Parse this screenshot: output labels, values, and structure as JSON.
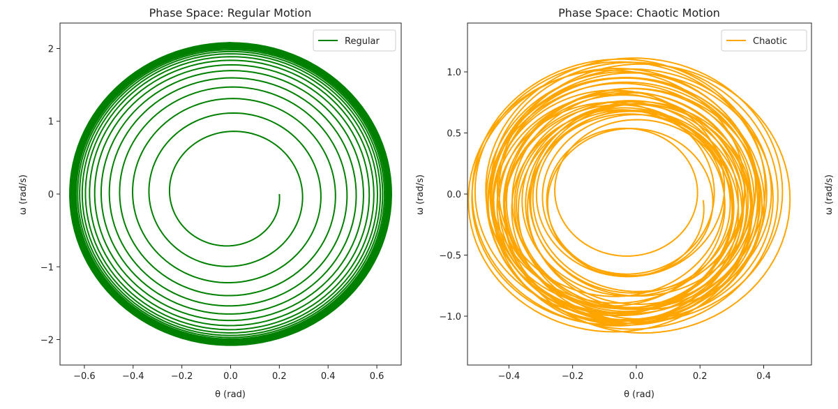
{
  "chart_data": [
    {
      "type": "line",
      "kind": "spiral",
      "title": "Phase Space: Regular Motion",
      "xlabel": "θ (rad)",
      "ylabel": "ω (rad/s)",
      "xlim": [
        -0.7,
        0.7
      ],
      "ylim": [
        -2.35,
        2.35
      ],
      "xticks": [
        -0.6,
        -0.4,
        -0.2,
        0.0,
        0.2,
        0.4,
        0.6
      ],
      "xtick_labels": [
        "−0.6",
        "−0.4",
        "−0.2",
        "0.0",
        "0.2",
        "0.4",
        "0.6"
      ],
      "yticks": [
        -2,
        -1,
        0,
        1,
        2
      ],
      "ytick_labels": [
        "−2",
        "−1",
        "0",
        "1",
        "2"
      ],
      "legend_position": "top-right",
      "grid": false,
      "series": [
        {
          "name": "Regular",
          "color": "#008000",
          "start": [
            0.2,
            0.0
          ],
          "turns": 36,
          "radius_start": 0.2,
          "radius_end": 0.66
        }
      ]
    },
    {
      "type": "line",
      "kind": "spiral",
      "title": "Phase Space: Chaotic Motion",
      "xlabel": "θ (rad)",
      "ylabel": "ω (rad/s)",
      "xlim": [
        -0.53,
        0.55
      ],
      "ylim": [
        -1.4,
        1.4
      ],
      "xticks": [
        -0.4,
        -0.2,
        0.0,
        0.2,
        0.4
      ],
      "xtick_labels": [
        "−0.4",
        "−0.2",
        "0.0",
        "0.2",
        "0.4"
      ],
      "yticks": [
        -1.0,
        -0.5,
        0.0,
        0.5,
        1.0
      ],
      "ytick_labels": [
        "−1.0",
        "−0.5",
        "0.0",
        "0.5",
        "1.0"
      ],
      "legend_position": "top-right",
      "grid": false,
      "series": [
        {
          "name": "Chaotic",
          "color": "#FFA500",
          "start": [
            0.2,
            0.0
          ],
          "turns": 40,
          "radius_start": 0.2,
          "radius_end": 0.4
        }
      ]
    },
    {
      "type": "line",
      "ylabel": "ω (rad/s)"
    }
  ]
}
